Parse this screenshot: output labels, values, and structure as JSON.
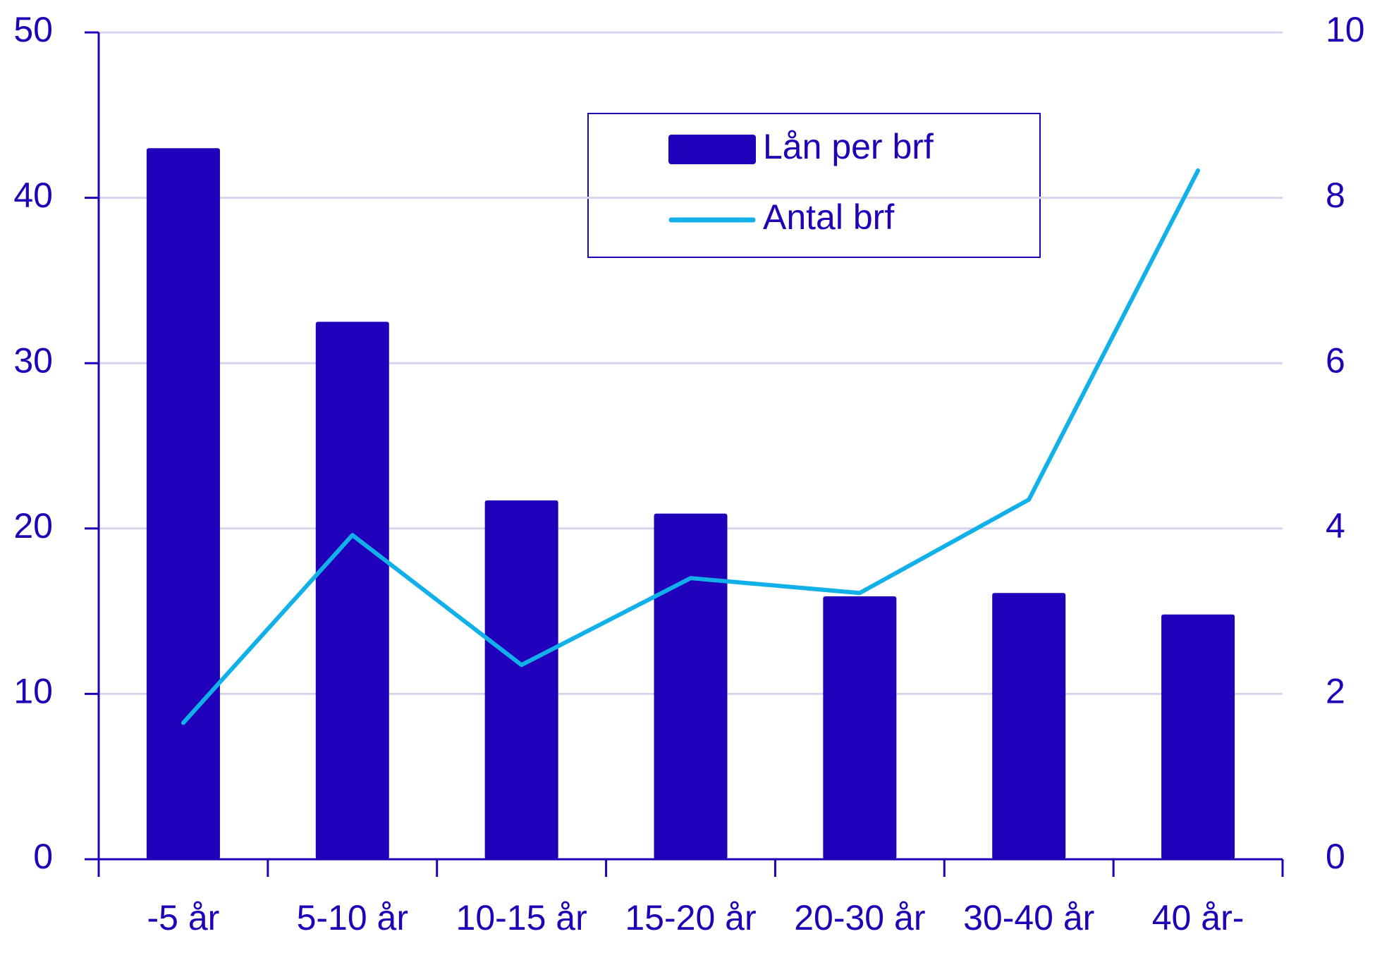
{
  "chart_data": {
    "type": "bar-line",
    "categories": [
      "-5 år",
      "5-10 år",
      "10-15 år",
      "15-20 år",
      "20-30 år",
      "30-40 år",
      "40 år-"
    ],
    "series": [
      {
        "name": "Lån per brf",
        "type": "bar",
        "color": "#2100bb",
        "values": [
          43,
          32.5,
          21.7,
          20.9,
          15.9,
          16.1,
          14.8
        ]
      },
      {
        "name": "Antal brf",
        "type": "line",
        "color": "#12b0e8",
        "axis": "y2",
        "values": [
          1.65,
          3.92,
          2.35,
          3.4,
          3.22,
          4.35,
          8.33
        ]
      }
    ],
    "ylim": [
      0,
      50
    ],
    "yticks": [
      0,
      10,
      20,
      30,
      40,
      50
    ],
    "y2lim": [
      0,
      10
    ],
    "y2ticks": [
      0,
      2,
      4,
      6,
      8,
      10
    ],
    "grid": true,
    "legend": "top-right"
  }
}
